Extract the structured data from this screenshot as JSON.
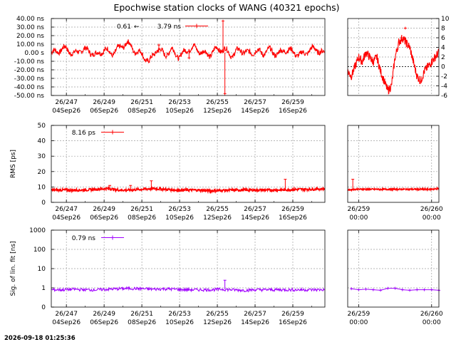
{
  "title": "Epochwise station clocks of WANG (40321 epochs)",
  "timestamp": "2026-09-18 01:25:36",
  "colors": {
    "clock": "#ff0000",
    "rms": "#ff0000",
    "sig": "#a000ff",
    "grid": "#a0a0a0",
    "zero": "#000000"
  },
  "bottom_ticks_main": [
    {
      "top": "26/247",
      "bottom": "04Sep26"
    },
    {
      "top": "26/249",
      "bottom": "06Sep26"
    },
    {
      "top": "26/251",
      "bottom": "08Sep26"
    },
    {
      "top": "26/253",
      "bottom": "10Sep26"
    },
    {
      "top": "26/255",
      "bottom": "12Sep26"
    },
    {
      "top": "26/257",
      "bottom": "14Sep26"
    },
    {
      "top": "26/259",
      "bottom": "16Sep26"
    }
  ],
  "bottom_ticks_zoom": [
    {
      "top": "26/259",
      "bottom": "00:00"
    },
    {
      "top": "26/260",
      "bottom": "00:00"
    }
  ],
  "chart_data": [
    {
      "type": "line",
      "panel": "clock-main",
      "ytick_labels": [
        "40.00 ns",
        "30.00 ns",
        "20.00 ns",
        "10.00 ns",
        "0.00 s",
        "-10.00 ns",
        "-20.00 ns",
        "-30.00 ns",
        "-40.00 ns",
        "-50.00 ns"
      ],
      "ylim": [
        -50,
        40
      ],
      "x_range_doy": [
        246.2,
        260.7
      ],
      "series": [
        {
          "legend_label": "0.61",
          "legend_symbol": "←"
        },
        {
          "legend_label": "3.79 ns"
        }
      ],
      "x_doy": [
        246.2,
        246.6,
        247.0,
        247.4,
        247.8,
        248.2,
        248.6,
        249.0,
        249.4,
        249.8,
        250.2,
        250.6,
        251.0,
        251.4,
        251.8,
        252.2,
        252.6,
        253.0,
        253.4,
        253.8,
        254.2,
        254.6,
        255.0,
        255.4,
        255.8,
        256.2,
        256.6,
        257.0,
        257.4,
        257.8,
        258.2,
        258.6,
        259.0,
        259.4,
        259.8,
        260.2,
        260.6
      ],
      "y_ns": [
        -1,
        3,
        5,
        -2,
        4,
        2,
        -3,
        4,
        -1,
        5,
        12,
        3,
        -2,
        -11,
        5,
        -2,
        3,
        -5,
        4,
        6,
        0,
        -2,
        5,
        3,
        -3,
        4,
        -1,
        2,
        0,
        3,
        -2,
        4,
        1,
        -3,
        2,
        5,
        -1
      ],
      "outliers": [
        {
          "x": 255.3,
          "y": 37
        },
        {
          "x": 255.4,
          "y": -48
        },
        {
          "x": 251.9,
          "y": 9
        },
        {
          "x": 253.5,
          "y": -6
        }
      ]
    },
    {
      "type": "line",
      "panel": "clock-zoom",
      "ytick_labels": [
        "10",
        "8",
        "6",
        "4",
        "2",
        "0",
        "-2",
        "-4",
        "-6"
      ],
      "ylim": [
        -6,
        10
      ],
      "x_range_doy": [
        258.85,
        260.1
      ],
      "x_doy": [
        258.85,
        258.9,
        258.95,
        259.0,
        259.05,
        259.1,
        259.15,
        259.2,
        259.25,
        259.3,
        259.35,
        259.4,
        259.45,
        259.5,
        259.55,
        259.6,
        259.65,
        259.7,
        259.75,
        259.8,
        259.85,
        259.9,
        259.95,
        260.0,
        260.05,
        260.1
      ],
      "y": [
        -1,
        -2,
        0,
        2,
        1,
        3,
        2,
        1,
        2,
        -1,
        -3,
        -5,
        -4,
        2,
        5,
        6,
        5,
        4,
        1,
        -2,
        -3,
        -1,
        0,
        1,
        2,
        3
      ],
      "outliers": [
        {
          "x": 259.64,
          "y": 8
        }
      ]
    },
    {
      "type": "line",
      "panel": "rms-main",
      "ylabel": "RMS [ps]",
      "ytick_labels": [
        "50",
        "40",
        "30",
        "20",
        "10",
        "0"
      ],
      "ylim": [
        0,
        50
      ],
      "legend_label": "8.16 ps",
      "x_range_doy": [
        246.2,
        260.7
      ],
      "x_doy": [
        246.2,
        246.8,
        247.4,
        248.0,
        248.6,
        249.2,
        249.8,
        250.4,
        251.0,
        251.6,
        252.2,
        252.8,
        253.4,
        254.0,
        254.6,
        255.2,
        255.8,
        256.4,
        257.0,
        257.6,
        258.2,
        258.8,
        259.4,
        260.0,
        260.6
      ],
      "y_ps": [
        8,
        8,
        8,
        8,
        8.5,
        9,
        8,
        8,
        8.5,
        9,
        8.5,
        8,
        8,
        8,
        7.5,
        7.8,
        8,
        8,
        8,
        8,
        8,
        8.2,
        8.5,
        8.5,
        8.8
      ],
      "spikes": [
        {
          "x": 251.5,
          "y": 14
        },
        {
          "x": 249.3,
          "y": 11
        },
        {
          "x": 250.4,
          "y": 11
        },
        {
          "x": 258.6,
          "y": 15
        }
      ]
    },
    {
      "type": "line",
      "panel": "rms-zoom",
      "ytick_labels": [],
      "ylim": [
        0,
        50
      ],
      "x_range_doy": [
        258.85,
        260.1
      ],
      "x_doy": [
        258.85,
        258.95,
        259.05,
        259.15,
        259.25,
        259.35,
        259.45,
        259.55,
        259.65,
        259.75,
        259.85,
        259.95,
        260.05,
        260.1
      ],
      "y_ps": [
        8,
        8.5,
        8.5,
        8.5,
        8.5,
        8.5,
        8.5,
        8.5,
        8.5,
        8.5,
        8.5,
        8.5,
        8.7,
        9
      ],
      "spikes": [
        {
          "x": 258.92,
          "y": 15
        }
      ]
    },
    {
      "type": "scatter",
      "panel": "sig-main",
      "ylabel": "Sig. of lin. fit [ns]",
      "ytick_labels": [
        "1000",
        "100",
        "10",
        "1",
        "0"
      ],
      "log_scale": true,
      "legend_label": "0.79 ns",
      "x_range_doy": [
        246.2,
        260.7
      ],
      "x_doy": [
        246.2,
        246.8,
        247.4,
        248.0,
        248.6,
        249.2,
        249.8,
        250.4,
        251.0,
        251.6,
        252.2,
        252.8,
        253.4,
        254.0,
        254.6,
        255.2,
        255.8,
        256.4,
        257.0,
        257.6,
        258.2,
        258.8,
        259.4,
        260.0,
        260.6
      ],
      "y_ns": [
        0.8,
        0.8,
        0.85,
        0.8,
        0.8,
        0.85,
        0.9,
        0.95,
        0.9,
        0.85,
        0.9,
        0.85,
        0.8,
        0.8,
        0.8,
        0.85,
        0.8,
        0.75,
        0.8,
        0.8,
        0.8,
        0.8,
        0.8,
        0.8,
        0.8
      ],
      "spikes": [
        {
          "x": 255.4,
          "y": 2.5
        }
      ]
    },
    {
      "type": "scatter",
      "panel": "sig-zoom",
      "ytick_labels": [],
      "log_scale": true,
      "x_range_doy": [
        258.85,
        260.1
      ],
      "x_doy": [
        258.9,
        259.0,
        259.1,
        259.2,
        259.3,
        259.4,
        259.5,
        259.6,
        259.7,
        259.8,
        259.9,
        260.0,
        260.1
      ],
      "y_ns": [
        0.9,
        0.8,
        0.85,
        0.8,
        0.75,
        0.95,
        0.95,
        0.8,
        0.75,
        0.8,
        0.8,
        0.8,
        0.75
      ]
    }
  ]
}
